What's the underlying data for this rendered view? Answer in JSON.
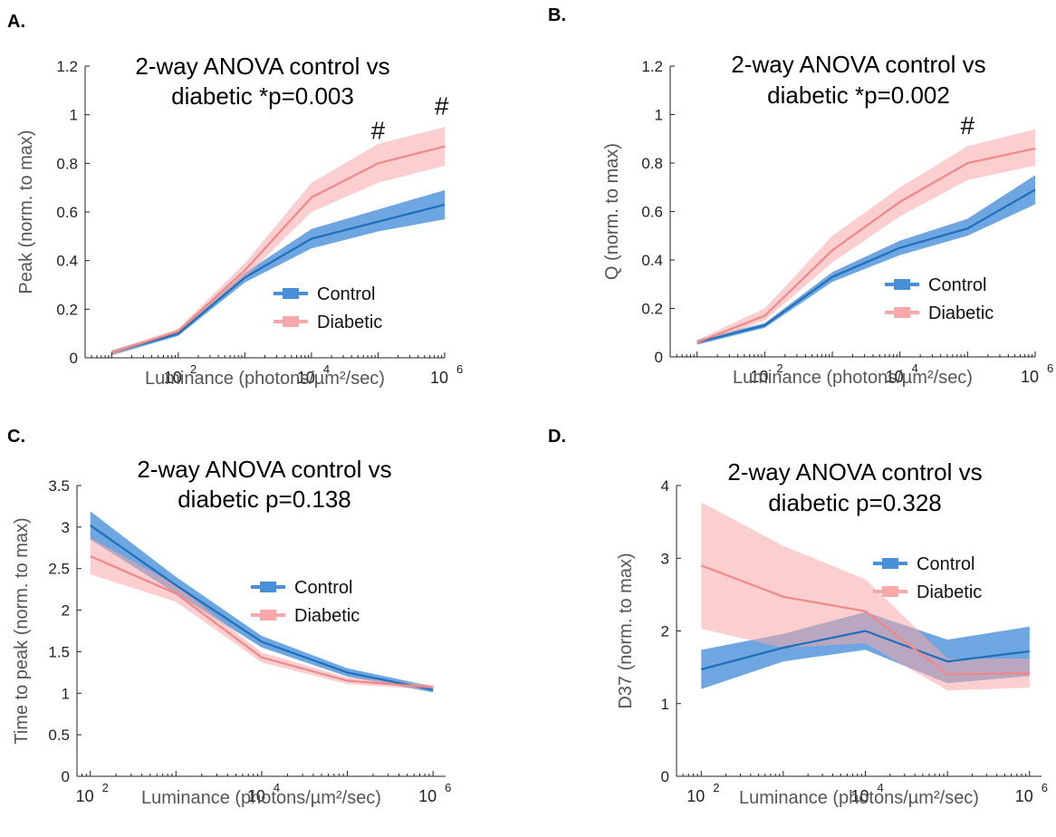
{
  "chart_data": [
    {
      "panel_label": "A.",
      "type": "line",
      "title_lines": [
        "2-way ANOVA control vs",
        "diabetic *p=0.003"
      ],
      "xlabel": "Luminance (photons/µm²/sec)",
      "ylabel": "Peak (norm. to max)",
      "xscale": "log",
      "xlim": [
        4,
        1000000
      ],
      "ylim": [
        0,
        1.2
      ],
      "yticks": [
        "0",
        "0.2",
        "0.4",
        "0.6",
        "0.8",
        "1",
        "1.2"
      ],
      "xticks": [
        {
          "base": "10",
          "exp": "2",
          "value": 100
        },
        {
          "base": "10",
          "exp": "4",
          "value": 10000
        },
        {
          "base": "10",
          "exp": "6",
          "value": 1000000
        }
      ],
      "legend_position": "lower-right",
      "annotations": [
        {
          "text": "#",
          "x": 100000,
          "y": 0.9
        },
        {
          "text": "#",
          "x": 900000,
          "y": 1.0
        }
      ],
      "series": [
        {
          "name": "Control",
          "color": "#1f6fba",
          "band_color": "#4a90d9",
          "x": [
            10,
            100,
            1000,
            10000,
            100000,
            1000000
          ],
          "y": [
            0.02,
            0.1,
            0.33,
            0.49,
            0.56,
            0.63
          ],
          "lower": [
            0.01,
            0.09,
            0.31,
            0.45,
            0.52,
            0.57
          ],
          "upper": [
            0.03,
            0.11,
            0.35,
            0.53,
            0.61,
            0.69
          ]
        },
        {
          "name": "Diabetic",
          "color": "#f08888",
          "band_color": "#f7a8a8",
          "x": [
            10,
            100,
            1000,
            10000,
            100000,
            1000000
          ],
          "y": [
            0.02,
            0.11,
            0.36,
            0.66,
            0.8,
            0.87
          ],
          "lower": [
            0.01,
            0.1,
            0.33,
            0.6,
            0.72,
            0.79
          ],
          "upper": [
            0.03,
            0.12,
            0.39,
            0.72,
            0.88,
            0.95
          ]
        }
      ]
    },
    {
      "panel_label": "B.",
      "type": "line",
      "title_lines": [
        "2-way ANOVA control vs",
        "diabetic *p=0.002"
      ],
      "xlabel": "Luminance (photons/µm²/sec)",
      "ylabel": "Q (norm. to max)",
      "xscale": "log",
      "xlim": [
        4,
        1000000
      ],
      "ylim": [
        0,
        1.2
      ],
      "yticks": [
        "0",
        "0.2",
        "0.4",
        "0.6",
        "0.8",
        "1",
        "1.2"
      ],
      "xticks": [
        {
          "base": "10",
          "exp": "2",
          "value": 100
        },
        {
          "base": "10",
          "exp": "4",
          "value": 10000
        },
        {
          "base": "10",
          "exp": "6",
          "value": 1000000
        }
      ],
      "legend_position": "lower-right",
      "annotations": [
        {
          "text": "#",
          "x": 100000,
          "y": 0.92
        }
      ],
      "series": [
        {
          "name": "Control",
          "color": "#1f6fba",
          "band_color": "#4a90d9",
          "x": [
            10,
            100,
            1000,
            10000,
            100000,
            1000000
          ],
          "y": [
            0.06,
            0.13,
            0.33,
            0.45,
            0.53,
            0.69
          ],
          "lower": [
            0.05,
            0.12,
            0.31,
            0.42,
            0.5,
            0.63
          ],
          "upper": [
            0.07,
            0.14,
            0.35,
            0.48,
            0.57,
            0.75
          ]
        },
        {
          "name": "Diabetic",
          "color": "#f08888",
          "band_color": "#f7a8a8",
          "x": [
            10,
            100,
            1000,
            10000,
            100000,
            1000000
          ],
          "y": [
            0.06,
            0.17,
            0.44,
            0.64,
            0.8,
            0.86
          ],
          "lower": [
            0.05,
            0.15,
            0.39,
            0.58,
            0.73,
            0.79
          ],
          "upper": [
            0.07,
            0.2,
            0.5,
            0.7,
            0.87,
            0.94
          ]
        }
      ]
    },
    {
      "panel_label": "C.",
      "type": "line",
      "title_lines": [
        "2-way ANOVA control vs",
        "diabetic p=0.138"
      ],
      "xlabel": "Luminance (photons/µm²/sec)",
      "ylabel": "Time to peak (norm. to max)",
      "xscale": "log",
      "xlim": [
        70,
        1400000
      ],
      "ylim": [
        0,
        3.5
      ],
      "yticks": [
        "0",
        "0.5",
        "1",
        "1.5",
        "2",
        "2.5",
        "3",
        "3.5"
      ],
      "xticks": [
        {
          "base": "10",
          "exp": "2",
          "value": 100
        },
        {
          "base": "10",
          "exp": "4",
          "value": 10000
        },
        {
          "base": "10",
          "exp": "6",
          "value": 1000000
        }
      ],
      "legend_position": "center-right",
      "annotations": [],
      "series": [
        {
          "name": "Control",
          "color": "#1f6fba",
          "band_color": "#4a90d9",
          "x": [
            100,
            1000,
            10000,
            100000,
            1000000
          ],
          "y": [
            3.02,
            2.3,
            1.62,
            1.25,
            1.04
          ],
          "lower": [
            2.85,
            2.2,
            1.55,
            1.2,
            1.01
          ],
          "upper": [
            3.19,
            2.4,
            1.69,
            1.3,
            1.08
          ]
        },
        {
          "name": "Diabetic",
          "color": "#f08888",
          "band_color": "#f7a8a8",
          "x": [
            100,
            1000,
            10000,
            100000,
            1000000
          ],
          "y": [
            2.65,
            2.2,
            1.43,
            1.15,
            1.07
          ],
          "lower": [
            2.43,
            2.1,
            1.37,
            1.11,
            1.04
          ],
          "upper": [
            2.87,
            2.3,
            1.49,
            1.19,
            1.1
          ]
        }
      ]
    },
    {
      "panel_label": "D.",
      "type": "line",
      "title_lines": [
        "2-way ANOVA control vs",
        "diabetic p=0.328"
      ],
      "xlabel": "Luminance (photons/µm²/sec)",
      "ylabel": "D37 (norm. to max)",
      "xscale": "log",
      "xlim": [
        50,
        1400000
      ],
      "ylim": [
        0,
        4
      ],
      "yticks": [
        "0",
        "1",
        "2",
        "3",
        "4"
      ],
      "xticks": [
        {
          "base": "10",
          "exp": "2",
          "value": 100
        },
        {
          "base": "10",
          "exp": "4",
          "value": 10000
        },
        {
          "base": "10",
          "exp": "6",
          "value": 1000000
        }
      ],
      "legend_position": "upper-right",
      "annotations": [],
      "series": [
        {
          "name": "Control",
          "color": "#1f6fba",
          "band_color": "#4a90d9",
          "x": [
            100,
            1000,
            10000,
            100000,
            1000000
          ],
          "y": [
            1.47,
            1.77,
            2.0,
            1.58,
            1.72
          ],
          "lower": [
            1.2,
            1.58,
            1.74,
            1.28,
            1.38
          ],
          "upper": [
            1.74,
            1.96,
            2.26,
            1.88,
            2.06
          ]
        },
        {
          "name": "Diabetic",
          "color": "#f08888",
          "band_color": "#f7a8a8",
          "x": [
            100,
            1000,
            10000,
            100000,
            1000000
          ],
          "y": [
            2.9,
            2.47,
            2.27,
            1.4,
            1.42
          ],
          "lower": [
            2.03,
            1.77,
            1.83,
            1.18,
            1.22
          ],
          "upper": [
            3.77,
            3.17,
            2.71,
            1.62,
            1.62
          ]
        }
      ]
    }
  ]
}
